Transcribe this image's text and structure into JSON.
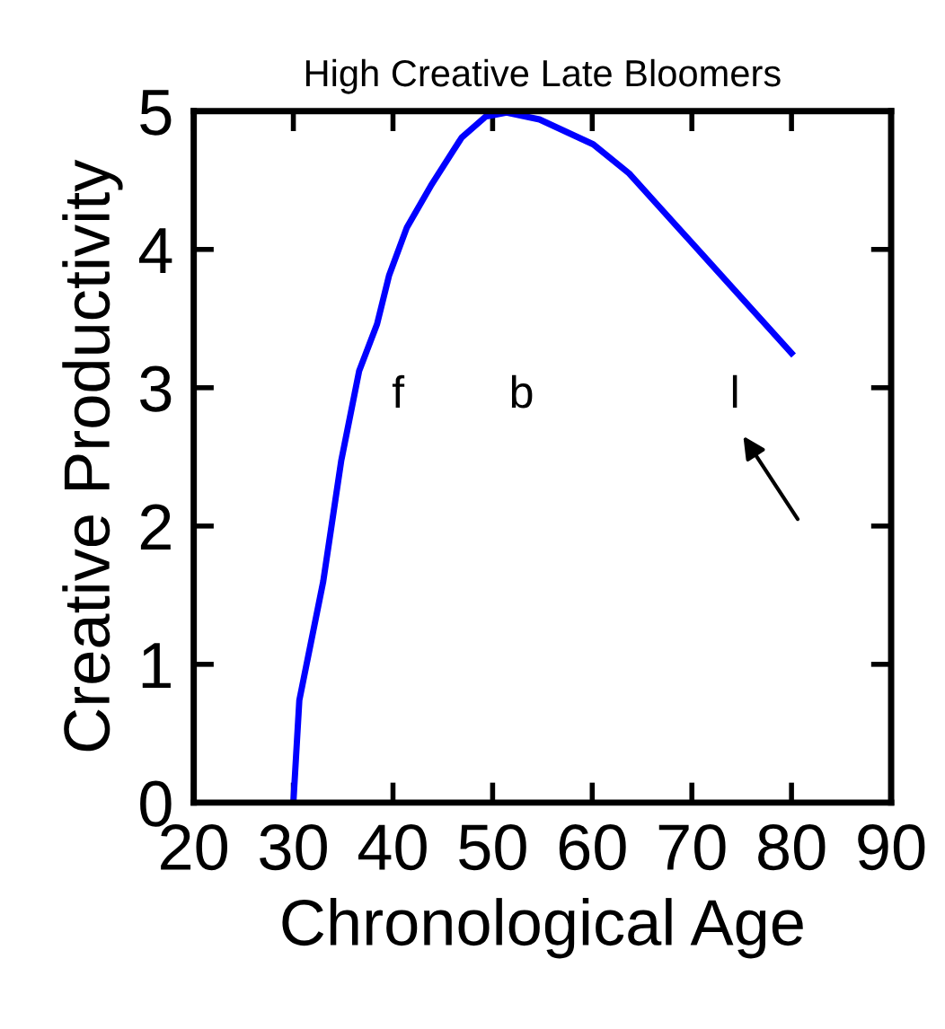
{
  "chart_data": {
    "type": "line",
    "title": "High Creative Late Bloomers",
    "xlabel": "Chronological Age",
    "ylabel": "Creative Productivity",
    "x": [
      30,
      30.6,
      33.0,
      34.8,
      36.6,
      38.4,
      39.6,
      41.4,
      43.8,
      46.9,
      49.3,
      51.4,
      54.7,
      60.1,
      63.7,
      66.7,
      71.6,
      80
    ],
    "series": [
      {
        "color": "#0000ff",
        "values": [
          0,
          0.74,
          1.6,
          2.47,
          3.12,
          3.46,
          3.81,
          4.16,
          4.46,
          4.81,
          4.96,
          4.99,
          4.94,
          4.76,
          4.55,
          4.31,
          3.92,
          3.25
        ]
      }
    ],
    "xlim": [
      20,
      90
    ],
    "xticks": [
      20,
      30,
      40,
      50,
      60,
      70,
      80,
      90
    ],
    "ylim": [
      0,
      5
    ],
    "yticks": [
      0,
      1,
      2,
      3,
      4,
      5
    ],
    "annotations": [
      "f",
      "b",
      "l"
    ],
    "grid": false,
    "legend": false,
    "marker": "none",
    "line_style": "solid"
  }
}
